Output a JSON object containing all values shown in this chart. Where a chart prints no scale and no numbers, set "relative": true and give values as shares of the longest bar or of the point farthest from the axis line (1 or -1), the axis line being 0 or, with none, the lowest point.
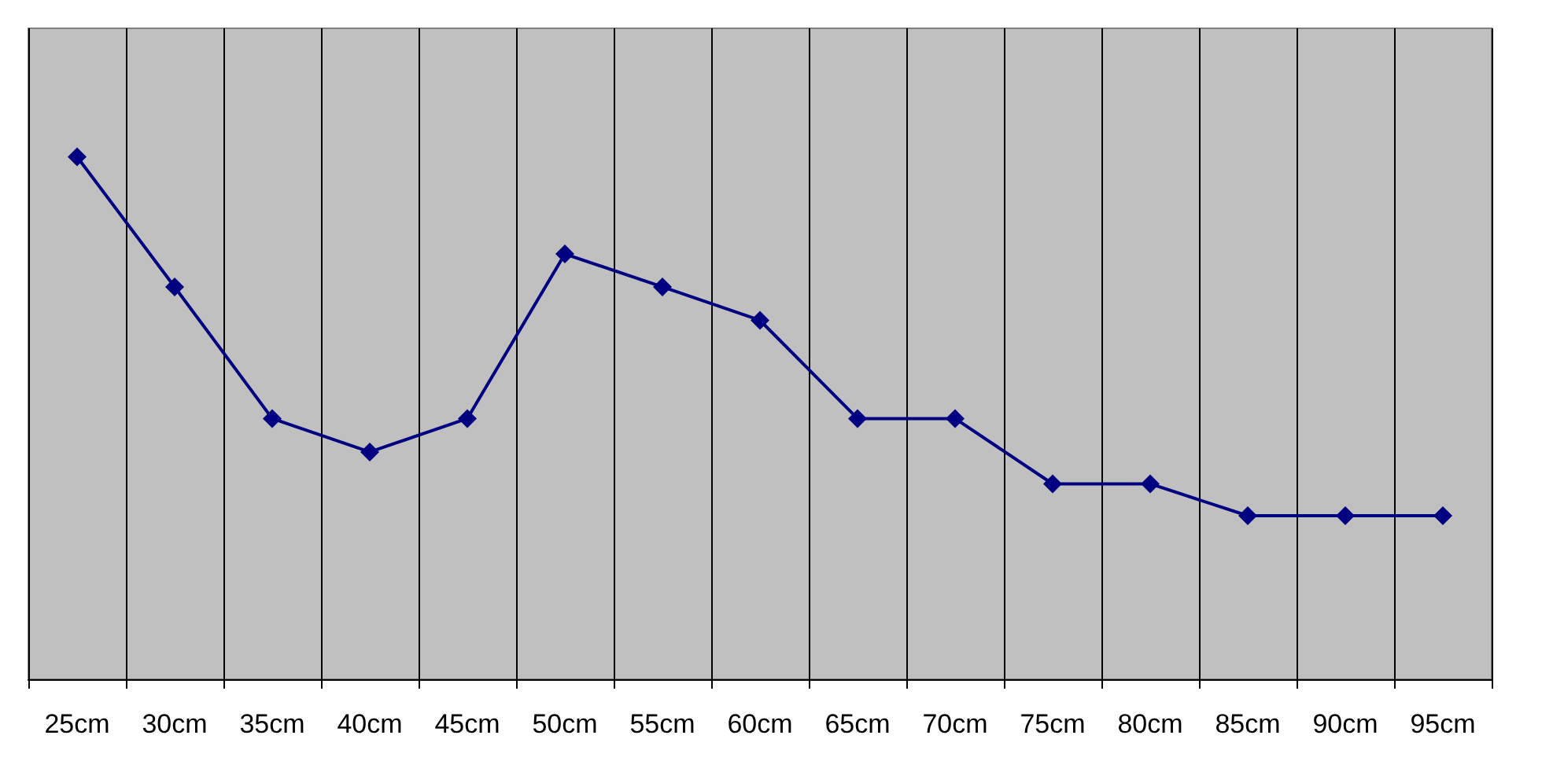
{
  "chart_data": {
    "type": "line",
    "relative": true,
    "categories": [
      "25cm",
      "30cm",
      "35cm",
      "40cm",
      "45cm",
      "50cm",
      "55cm",
      "60cm",
      "65cm",
      "70cm",
      "75cm",
      "80cm",
      "85cm",
      "90cm",
      "95cm"
    ],
    "series": [
      {
        "color": "#000080",
        "values": [
          1,
          0.751,
          0.499,
          0.435,
          0.499,
          0.814,
          0.751,
          0.687,
          0.499,
          0.499,
          0.374,
          0.374,
          0.313,
          0.313,
          0.313
        ]
      }
    ],
    "grid": "x",
    "marker": "diamond",
    "line_style": "solid"
  }
}
